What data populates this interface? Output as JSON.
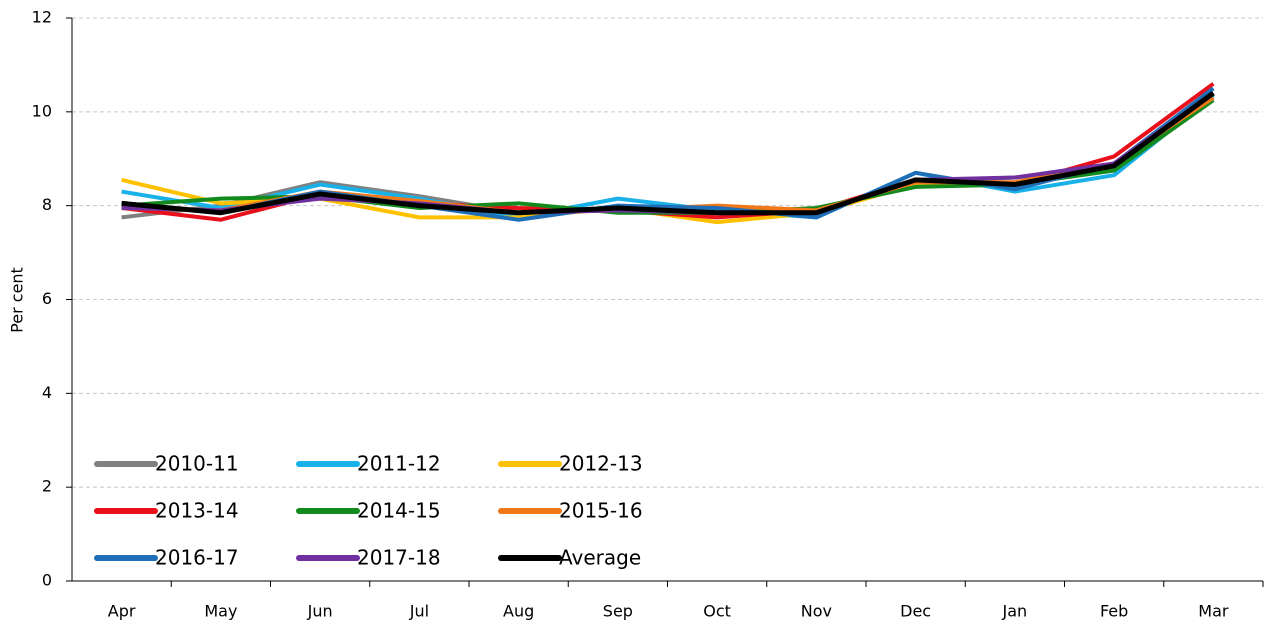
{
  "chart_data": {
    "type": "line",
    "y_label": "Per cent",
    "categories": [
      "Apr",
      "May",
      "Jun",
      "Jul",
      "Aug",
      "Sep",
      "Oct",
      "Nov",
      "Dec",
      "Jan",
      "Feb",
      "Mar"
    ],
    "ylim": [
      0,
      12
    ],
    "yticks": [
      0,
      2,
      4,
      6,
      8,
      10,
      12
    ],
    "grid": true,
    "legend": "lower left",
    "series": [
      {
        "name": "2010-11",
        "color": "#808080",
        "values": [
          7.75,
          8.0,
          8.5,
          8.2,
          7.85,
          7.95,
          7.85,
          7.9,
          8.5,
          8.6,
          8.8,
          10.3
        ]
      },
      {
        "name": "2011-12",
        "color": "#1ab0e8",
        "values": [
          8.3,
          7.95,
          8.45,
          8.15,
          7.75,
          8.15,
          7.9,
          7.75,
          8.7,
          8.3,
          8.65,
          10.35
        ]
      },
      {
        "name": "2012-13",
        "color": "#ffc000",
        "values": [
          8.55,
          8.05,
          8.15,
          7.75,
          7.75,
          7.95,
          7.65,
          7.85,
          8.45,
          8.5,
          8.8,
          10.4
        ]
      },
      {
        "name": "2013-14",
        "color": "#e8101a",
        "values": [
          7.95,
          7.7,
          8.25,
          8.05,
          7.95,
          7.9,
          7.75,
          7.9,
          8.55,
          8.45,
          9.05,
          10.6
        ]
      },
      {
        "name": "2014-15",
        "color": "#138a1e",
        "values": [
          8.0,
          8.15,
          8.2,
          7.95,
          8.05,
          7.85,
          7.85,
          7.95,
          8.4,
          8.45,
          8.75,
          10.25
        ]
      },
      {
        "name": "2015-16",
        "color": "#f07818",
        "values": [
          7.95,
          7.9,
          8.3,
          8.1,
          7.85,
          7.9,
          8.0,
          7.9,
          8.5,
          8.5,
          8.9,
          10.3
        ]
      },
      {
        "name": "2016-17",
        "color": "#1f6fb8",
        "values": [
          8.05,
          7.85,
          8.3,
          8.0,
          7.7,
          8.0,
          7.95,
          7.75,
          8.7,
          8.35,
          8.9,
          10.5
        ]
      },
      {
        "name": "2017-18",
        "color": "#7030a0",
        "values": [
          7.95,
          7.9,
          8.15,
          8.05,
          7.85,
          7.9,
          7.85,
          7.85,
          8.55,
          8.6,
          8.9,
          10.4
        ]
      },
      {
        "name": "Average",
        "color": "#000000",
        "values": [
          8.05,
          7.85,
          8.25,
          8.0,
          7.85,
          7.95,
          7.85,
          7.85,
          8.55,
          8.45,
          8.85,
          10.4
        ]
      }
    ]
  }
}
